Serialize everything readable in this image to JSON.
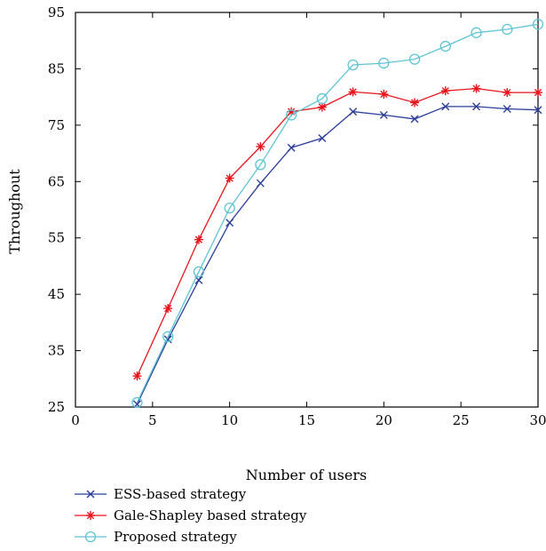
{
  "chart_data": {
    "type": "line",
    "title": "",
    "xlabel": "Number of users",
    "ylabel": "Throughout",
    "xlim": [
      0,
      30
    ],
    "ylim": [
      25,
      95
    ],
    "xticks": [
      0,
      5,
      10,
      15,
      20,
      25,
      30
    ],
    "yticks": [
      25,
      35,
      45,
      55,
      65,
      75,
      85,
      95
    ],
    "grid": false,
    "legend_position": "bottom-left, below plot",
    "x": [
      4,
      6,
      8,
      10,
      12,
      14,
      16,
      18,
      20,
      22,
      24,
      26,
      28,
      30
    ],
    "series": [
      {
        "name": "ESS-based strategy",
        "color": "#2b3f99",
        "marker": "x",
        "values": [
          25.5,
          37.0,
          47.5,
          57.7,
          64.7,
          71.0,
          72.7,
          77.4,
          76.8,
          76.1,
          78.3,
          78.3,
          77.9,
          77.7
        ]
      },
      {
        "name": "Gale-Shapley based strategy",
        "color": "#e8141c",
        "marker": "star",
        "values": [
          30.5,
          42.5,
          54.7,
          65.6,
          71.2,
          77.4,
          78.2,
          80.9,
          80.5,
          79.0,
          81.1,
          81.5,
          80.8,
          80.8
        ]
      },
      {
        "name": "Proposed strategy",
        "color": "#5fc4d4",
        "marker": "circle",
        "values": [
          25.8,
          37.5,
          49.0,
          60.3,
          68.0,
          76.8,
          79.7,
          85.7,
          86.0,
          86.7,
          89.0,
          91.4,
          92.0,
          92.9
        ]
      }
    ]
  }
}
